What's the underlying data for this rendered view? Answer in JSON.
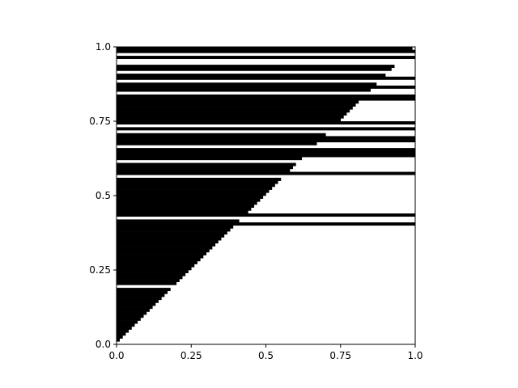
{
  "chart_data": {
    "type": "heatmap",
    "title": "",
    "xlabel": "",
    "ylabel": "",
    "xlim": [
      0.0,
      1.0
    ],
    "ylim": [
      0.0,
      1.0
    ],
    "grid": false,
    "legend": "none",
    "colormap": {
      "1": "#000000",
      "0": "#ffffff"
    },
    "x_ticks": [
      {
        "value": 0.0,
        "label": "0.0"
      },
      {
        "value": 0.25,
        "label": "0.25"
      },
      {
        "value": 0.5,
        "label": "0.5"
      },
      {
        "value": 0.75,
        "label": "0.75"
      },
      {
        "value": 1.0,
        "label": "1.0"
      }
    ],
    "y_ticks": [
      {
        "value": 0.0,
        "label": "0.0"
      },
      {
        "value": 0.25,
        "label": "0.25"
      },
      {
        "value": 0.5,
        "label": "0.5"
      },
      {
        "value": 0.75,
        "label": "0.75"
      },
      {
        "value": 1.0,
        "label": "1.0"
      }
    ],
    "description_of_values": "Binary matrix on a 100x100 grid over [0,1]x[0,1]: cells left of the diagonal x=y are black (1); cells right of the diagonal are black only in the listed y-bands; plus the listed full-width white rows.",
    "grid_size": 100,
    "left_region_value": 1,
    "right_region_default": 0,
    "black_bands_right_of_diagonal": [
      [
        0.19,
        0.2
      ],
      [
        0.4,
        0.41
      ],
      [
        0.43,
        0.44
      ],
      [
        0.57,
        0.58
      ],
      [
        0.63,
        0.66
      ],
      [
        0.68,
        0.7
      ],
      [
        0.72,
        0.73
      ],
      [
        0.74,
        0.75
      ],
      [
        0.82,
        0.84
      ],
      [
        0.86,
        0.87
      ],
      [
        0.89,
        0.9
      ],
      [
        0.95,
        0.99
      ]
    ],
    "white_rows_full_width": [
      [
        0.19,
        0.2
      ],
      [
        0.42,
        0.43
      ],
      [
        0.56,
        0.57
      ],
      [
        0.61,
        0.62
      ],
      [
        0.66,
        0.67
      ],
      [
        0.71,
        0.72
      ],
      [
        0.73,
        0.74
      ],
      [
        0.84,
        0.85
      ],
      [
        0.88,
        0.89
      ],
      [
        0.91,
        0.92
      ],
      [
        0.94,
        0.96
      ],
      [
        0.97,
        0.98
      ]
    ]
  }
}
